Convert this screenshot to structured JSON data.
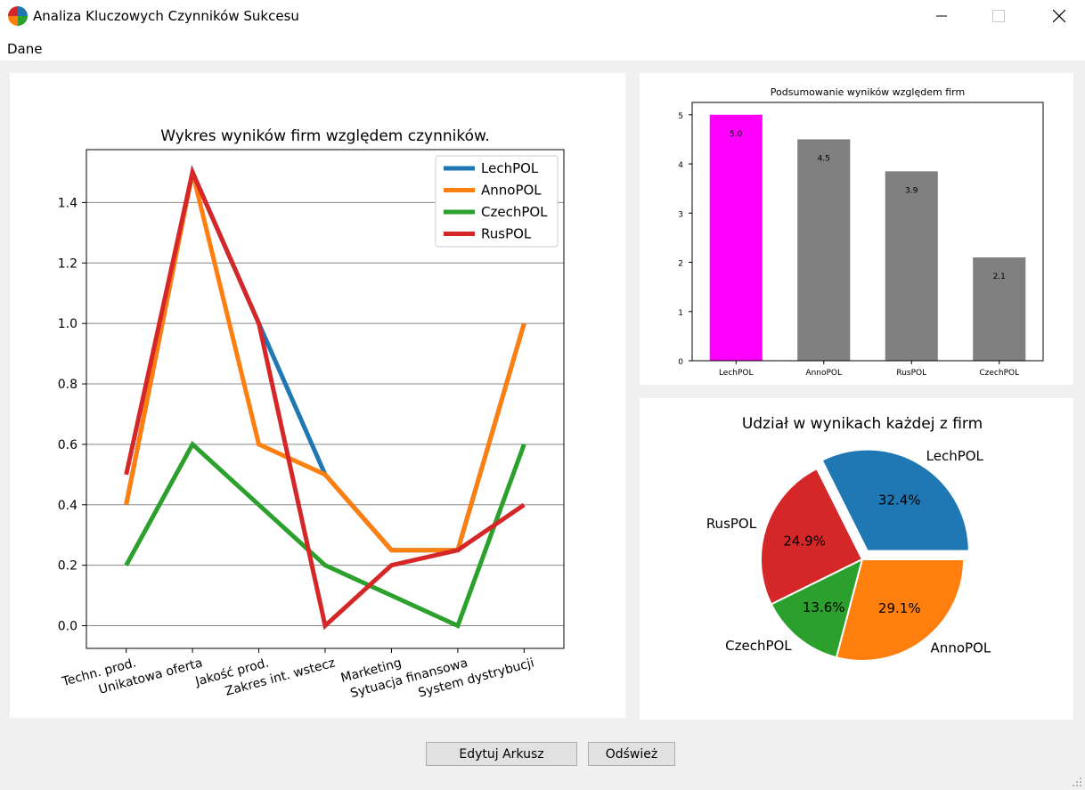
{
  "window": {
    "title": "Analiza Kluczowych Czynników Sukcesu"
  },
  "menu": {
    "items": [
      "Dane"
    ]
  },
  "buttons": {
    "edit": "Edytuj Arkusz",
    "refresh": "Odśwież"
  },
  "colors": {
    "LechPOL": "#1f77b4",
    "AnnoPOL": "#ff7f0e",
    "CzechPOL": "#2ca02c",
    "RusPOL": "#d62728",
    "highlight": "#ff00ff",
    "bar_default": "#808080"
  },
  "chart_data": [
    {
      "type": "line",
      "title": "Wykres wyników firm względem czynników.",
      "categories": [
        "Techn. prod.",
        "Unikatowa oferta",
        "Jakość prod.",
        "Zakres int. wstecz",
        "Marketing",
        "Sytuacja finansowa",
        "System dystrybucji"
      ],
      "series": [
        {
          "name": "LechPOL",
          "values": [
            0.4,
            1.5,
            1.0,
            0.5,
            0.25,
            0.25,
            1.0
          ]
        },
        {
          "name": "AnnoPOL",
          "values": [
            0.4,
            1.5,
            0.6,
            0.5,
            0.25,
            0.25,
            1.0
          ]
        },
        {
          "name": "CzechPOL",
          "values": [
            0.2,
            0.6,
            0.4,
            0.2,
            0.1,
            0.0,
            0.6
          ]
        },
        {
          "name": "RusPOL",
          "values": [
            0.5,
            1.5,
            1.0,
            0.0,
            0.2,
            0.25,
            0.4
          ]
        }
      ],
      "yticks": [
        "0.0",
        "0.2",
        "0.4",
        "0.6",
        "0.8",
        "1.0",
        "1.2",
        "1.4"
      ],
      "ylim": [
        -0.075,
        1.575
      ],
      "grid": "horizontal",
      "legend": "top-right"
    },
    {
      "type": "bar",
      "title": "Podsumowanie wyników względem firm",
      "categories": [
        "LechPOL",
        "AnnoPOL",
        "RusPOL",
        "CzechPOL"
      ],
      "values": [
        5.0,
        4.5,
        3.85,
        2.1
      ],
      "value_labels": [
        "5.0",
        "4.5",
        "3.9",
        "2.1"
      ],
      "highlighted": "LechPOL",
      "yticks": [
        "0",
        "1",
        "2",
        "3",
        "4",
        "5"
      ],
      "ylim": [
        0,
        5.25
      ]
    },
    {
      "type": "pie",
      "title": "Udział w wynikach każdej z firm",
      "labels": [
        "LechPOL",
        "RusPOL",
        "CzechPOL",
        "AnnoPOL"
      ],
      "values": [
        32.4,
        24.9,
        13.6,
        29.1
      ],
      "value_labels": [
        "32.4%",
        "24.9%",
        "13.6%",
        "29.1%"
      ],
      "exploded": "LechPOL"
    }
  ]
}
